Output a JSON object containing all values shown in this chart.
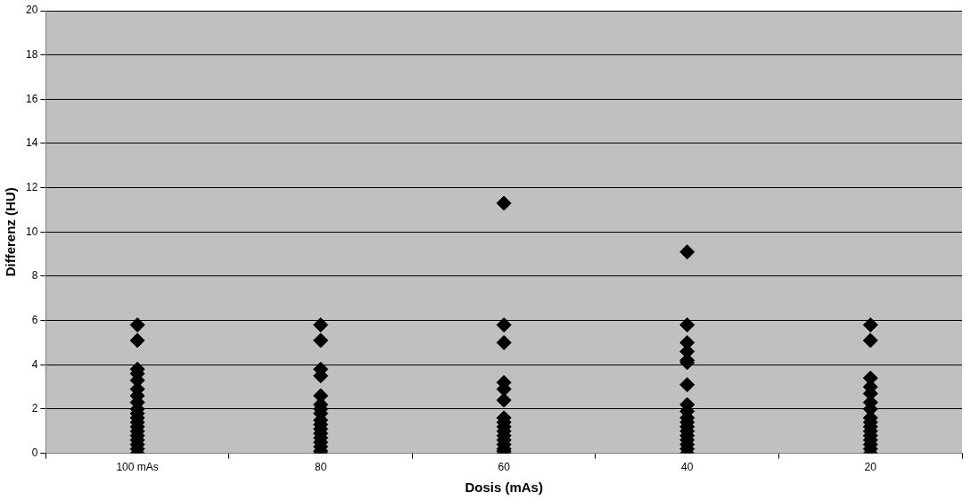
{
  "chart_data": {
    "type": "scatter",
    "xlabel": "Dosis (mAs)",
    "ylabel": "Differenz (HU)",
    "categories": [
      "100 mAs",
      "80",
      "60",
      "40",
      "20"
    ],
    "ylim": [
      0,
      20
    ],
    "yticks": [
      0,
      2,
      4,
      6,
      8,
      10,
      12,
      14,
      16,
      18,
      20
    ],
    "grid": "y",
    "marker": "diamond",
    "series": [
      {
        "color": "#000000",
        "x": [
          "100 mAs",
          "100 mAs",
          "100 mAs",
          "100 mAs",
          "100 mAs",
          "100 mAs",
          "100 mAs",
          "100 mAs",
          "100 mAs",
          "100 mAs",
          "100 mAs",
          "100 mAs",
          "100 mAs",
          "100 mAs",
          "100 mAs",
          "100 mAs",
          "100 mAs",
          "100 mAs",
          "100 mAs",
          "80",
          "80",
          "80",
          "80",
          "80",
          "80",
          "80",
          "80",
          "80",
          "80",
          "80",
          "80",
          "80",
          "80",
          "80",
          "80",
          "80",
          "60",
          "60",
          "60",
          "60",
          "60",
          "60",
          "60",
          "60",
          "60",
          "60",
          "60",
          "60",
          "60",
          "60",
          "60",
          "60",
          "40",
          "40",
          "40",
          "40",
          "40",
          "40",
          "40",
          "40",
          "40",
          "40",
          "40",
          "40",
          "40",
          "40",
          "40",
          "40",
          "40",
          "40",
          "20",
          "20",
          "20",
          "20",
          "20",
          "20",
          "20",
          "20",
          "20",
          "20",
          "20",
          "20",
          "20",
          "20",
          "20",
          "20"
        ],
        "values": [
          5.8,
          5.1,
          3.8,
          3.6,
          3.3,
          2.9,
          2.6,
          2.3,
          2.0,
          1.8,
          1.6,
          1.4,
          1.2,
          1.0,
          0.8,
          0.6,
          0.4,
          0.2,
          0,
          5.8,
          5.1,
          3.8,
          3.5,
          2.6,
          2.2,
          2.0,
          1.8,
          1.5,
          1.3,
          1.1,
          0.9,
          0.7,
          0.5,
          0.3,
          0.1,
          0,
          11.3,
          5.8,
          5.0,
          3.2,
          2.9,
          2.4,
          1.6,
          1.4,
          1.2,
          1.0,
          0.8,
          0.6,
          0.4,
          0.2,
          0.1,
          0,
          9.1,
          5.8,
          5.0,
          4.6,
          4.2,
          4.1,
          3.1,
          2.2,
          1.9,
          1.6,
          1.4,
          1.2,
          1.0,
          0.8,
          0.6,
          0.4,
          0.2,
          0,
          5.8,
          5.1,
          3.4,
          3.0,
          2.7,
          2.3,
          2.0,
          1.6,
          1.4,
          1.2,
          1.0,
          0.8,
          0.6,
          0.4,
          0.2,
          0
        ]
      }
    ]
  }
}
